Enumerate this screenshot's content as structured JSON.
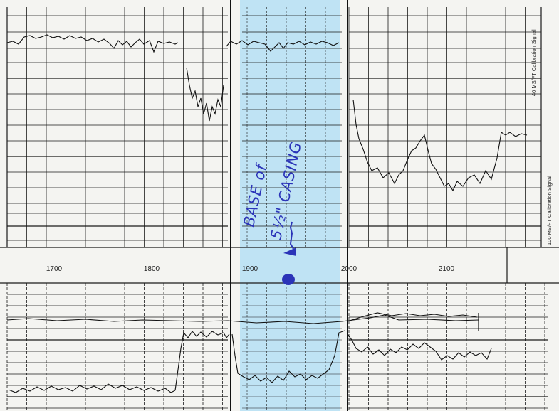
{
  "depth_track": {
    "labels": [
      "1700",
      "1800",
      "1900",
      "2000",
      "2100"
    ]
  },
  "side_labels": {
    "upper": "40 MS/FT Calibration Signal",
    "lower": "100 MS/FT Calibration Signal"
  },
  "annotation": {
    "line1": "BASE of",
    "line2": "5½\" CASING"
  },
  "colors": {
    "paper": "#f4f4f1",
    "grid": "#1a1a1a",
    "highlight": "#bfe3f4",
    "ink": "#2b34b8"
  }
}
